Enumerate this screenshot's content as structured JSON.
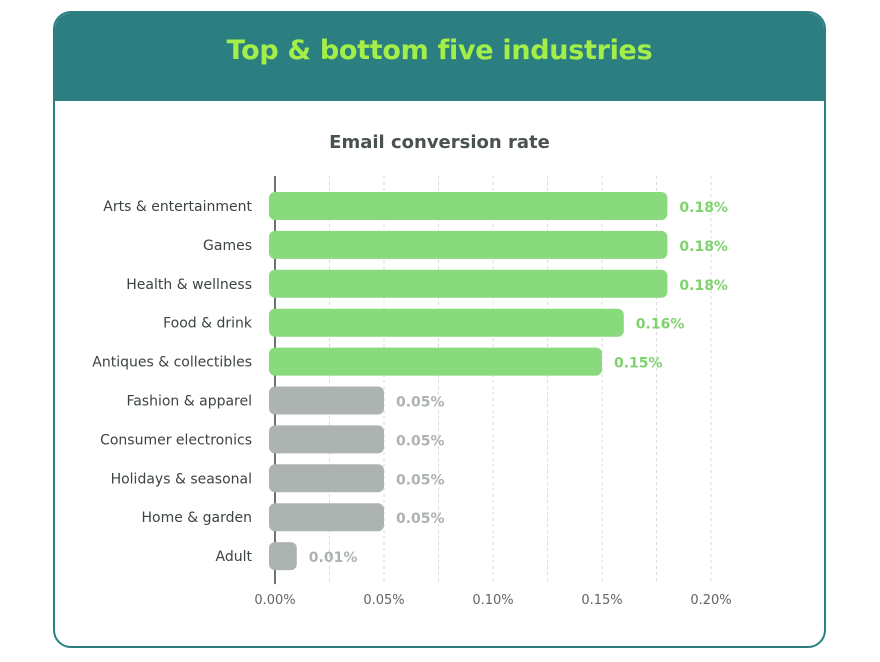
{
  "header": {
    "title": "Top & bottom five industries"
  },
  "colors": {
    "header_bg": "#2b7f80",
    "title": "#a4ee4a",
    "top_bar": "#89d97d",
    "top_label": "#7fd36f",
    "bottom_bar": "#adb3b1",
    "bottom_label": "#adb3b1",
    "axis": "#3c4442",
    "grid": "#d8dbda"
  },
  "chart_data": {
    "type": "bar",
    "orientation": "horizontal",
    "title": "Email conversion rate",
    "xlabel": "",
    "ylabel": "",
    "xlim": [
      0,
      0.2
    ],
    "x_ticks": [
      "0.00%",
      "0.05%",
      "0.10%",
      "0.15%",
      "0.20%"
    ],
    "grid": "vertical dashed",
    "categories": [
      "Arts & entertainment",
      "Games",
      "Health & wellness",
      "Food & drink",
      "Antiques & collectibles",
      "Fashion & apparel",
      "Consumer electronics",
      "Holidays & seasonal",
      "Home & garden",
      "Adult"
    ],
    "values": [
      0.18,
      0.18,
      0.18,
      0.16,
      0.15,
      0.05,
      0.05,
      0.05,
      0.05,
      0.01
    ],
    "value_labels": [
      "0.18%",
      "0.18%",
      "0.18%",
      "0.16%",
      "0.15%",
      "0.05%",
      "0.05%",
      "0.05%",
      "0.05%",
      "0.01%"
    ],
    "groups": [
      "top",
      "top",
      "top",
      "top",
      "top",
      "bottom",
      "bottom",
      "bottom",
      "bottom",
      "bottom"
    ]
  }
}
